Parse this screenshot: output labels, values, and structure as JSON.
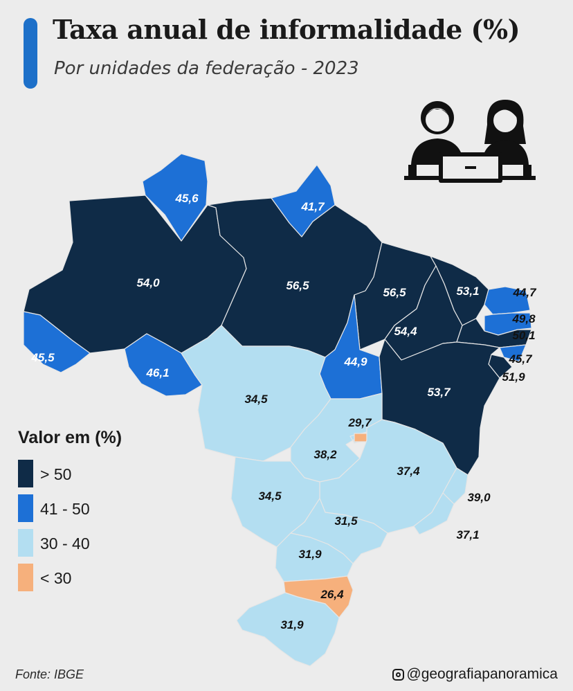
{
  "header": {
    "title": "Taxa anual de informalidade (%)",
    "subtitle": "Por unidades da federação - 2023"
  },
  "colors": {
    "above_50": "#0f2b47",
    "from_41_to_50": "#1d70d6",
    "from_30_to_40": "#b3def1",
    "below_30": "#f6b07c",
    "title_accent": "#1d70c9"
  },
  "states": [
    {
      "value": "54,0",
      "category": "above_50"
    },
    {
      "value": "45,6",
      "category": "from_41_to_50"
    },
    {
      "value": "41,7",
      "category": "from_41_to_50"
    },
    {
      "value": "56,5",
      "category": "above_50"
    },
    {
      "value": "45,5",
      "category": "from_41_to_50"
    },
    {
      "value": "46,1",
      "category": "from_41_to_50"
    },
    {
      "value": "56,5",
      "category": "above_50"
    },
    {
      "value": "53,1",
      "category": "above_50"
    },
    {
      "value": "44,7",
      "category": "from_41_to_50"
    },
    {
      "value": "49,8",
      "category": "from_41_to_50"
    },
    {
      "value": "54,4",
      "category": "above_50"
    },
    {
      "value": "50,1",
      "category": "above_50"
    },
    {
      "value": "44,9",
      "category": "from_41_to_50"
    },
    {
      "value": "45,7",
      "category": "from_41_to_50"
    },
    {
      "value": "51,9",
      "category": "above_50"
    },
    {
      "value": "53,7",
      "category": "above_50"
    },
    {
      "value": "34,5",
      "category": "from_30_to_40"
    },
    {
      "value": "29,7",
      "category": "below_30"
    },
    {
      "value": "38,2",
      "category": "from_30_to_40"
    },
    {
      "value": "37,4",
      "category": "from_30_to_40"
    },
    {
      "value": "34,5",
      "category": "from_30_to_40"
    },
    {
      "value": "39,0",
      "category": "from_30_to_40"
    },
    {
      "value": "31,5",
      "category": "from_30_to_40"
    },
    {
      "value": "37,1",
      "category": "from_30_to_40"
    },
    {
      "value": "31,9",
      "category": "from_30_to_40"
    },
    {
      "value": "26,4",
      "category": "below_30"
    },
    {
      "value": "31,9",
      "category": "from_30_to_40"
    }
  ],
  "legend": {
    "title": "Valor em (%)",
    "items": [
      {
        "label": "> 50",
        "category": "above_50"
      },
      {
        "label": "41 - 50",
        "category": "from_41_to_50"
      },
      {
        "label": "30 - 40",
        "category": "from_30_to_40"
      },
      {
        "label": "< 30",
        "category": "below_30"
      }
    ]
  },
  "footer": {
    "source": "Fonte: IBGE",
    "handle": "@geografiapanoramica"
  },
  "icons": {
    "illustration": "workers-at-laptop-icon",
    "social": "instagram-icon"
  }
}
